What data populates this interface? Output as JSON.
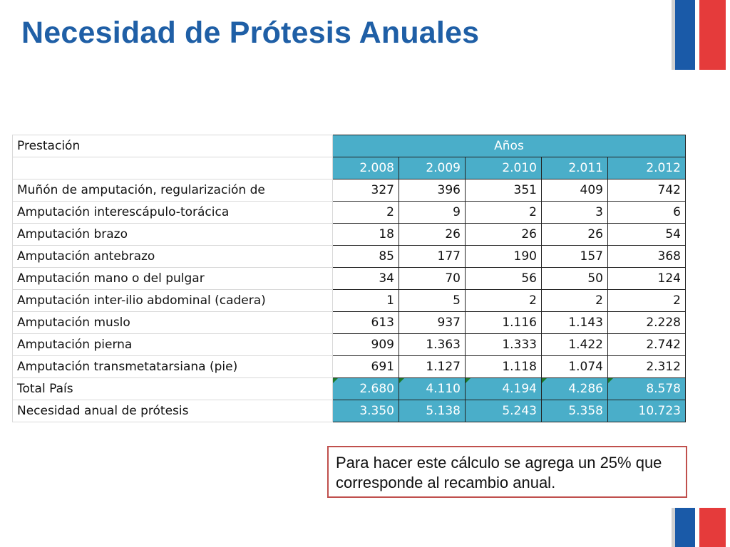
{
  "slide": {
    "title": "Necesidad de Prótesis Anuales"
  },
  "table": {
    "label_header": "Prestación",
    "years_header": "Años",
    "years": [
      "2.008",
      "2.009",
      "2.010",
      "2.011",
      "2.012"
    ],
    "rows": [
      {
        "label": "Muñón de amputación, regularización de",
        "values": [
          "327",
          "396",
          "351",
          "409",
          "742"
        ]
      },
      {
        "label": "Amputación interescápulo-torácica",
        "values": [
          "2",
          "9",
          "2",
          "3",
          "6"
        ]
      },
      {
        "label": "Amputación brazo",
        "values": [
          "18",
          "26",
          "26",
          "26",
          "54"
        ]
      },
      {
        "label": "Amputación antebrazo",
        "values": [
          "85",
          "177",
          "190",
          "157",
          "368"
        ]
      },
      {
        "label": "Amputación mano o del pulgar",
        "values": [
          "34",
          "70",
          "56",
          "50",
          "124"
        ]
      },
      {
        "label": "Amputación inter-ilio abdominal (cadera)",
        "values": [
          "1",
          "5",
          "2",
          "2",
          "2"
        ]
      },
      {
        "label": "Amputación muslo",
        "values": [
          "613",
          "937",
          "1.116",
          "1.143",
          "2.228"
        ]
      },
      {
        "label": "Amputación pierna",
        "values": [
          "909",
          "1.363",
          "1.333",
          "1.422",
          "2.742"
        ]
      },
      {
        "label": "Amputación transmetatarsiana (pie)",
        "values": [
          "691",
          "1.127",
          "1.118",
          "1.074",
          "2.312"
        ]
      }
    ],
    "total": {
      "label": "Total País",
      "values": [
        "2.680",
        "4.110",
        "4.194",
        "4.286",
        "8.578"
      ]
    },
    "need": {
      "label": "Necesidad anual de prótesis",
      "values": [
        "3.350",
        "5.138",
        "5.243",
        "5.358",
        "10.723"
      ]
    }
  },
  "note": {
    "text": "Para hacer este cálculo se agrega un 25% que corresponde al recambio anual."
  },
  "colors": {
    "title": "#1f5fa6",
    "header_fill": "#4aaec9",
    "flag_blue": "#1a5aa8",
    "flag_red": "#e53b3b",
    "note_border": "#c0504d"
  }
}
